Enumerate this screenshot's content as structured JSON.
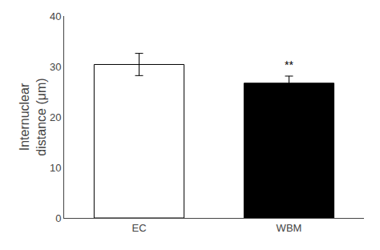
{
  "chart_data": {
    "type": "bar",
    "categories": [
      "EC",
      "WBM"
    ],
    "values": [
      30.4,
      26.7
    ],
    "errors": [
      2.2,
      1.4
    ],
    "colors": [
      "#ffffff",
      "#000000"
    ],
    "ylabel": "Internuclear\ndistance (μm)",
    "ylim": [
      0,
      40
    ],
    "yticks": [
      0,
      10,
      20,
      30,
      40
    ],
    "annotations": [
      {
        "category": "WBM",
        "text": "**"
      }
    ],
    "grid": false
  }
}
